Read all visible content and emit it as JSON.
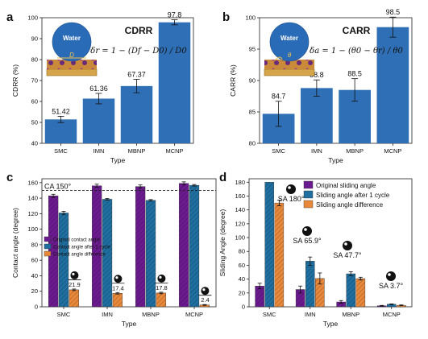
{
  "chart_data": [
    {
      "panel": "a",
      "type": "bar",
      "title": "CDRR",
      "equation": "δr = 1 − (Df − D0) / D0",
      "inset_label": "Water",
      "inset_symbol": "D",
      "categories": [
        "SMC",
        "IMN",
        "MBNP",
        "MCNP"
      ],
      "values": [
        51.42,
        61.36,
        67.37,
        97.8
      ],
      "value_labels": [
        "51.42",
        "61.36",
        "67.37",
        "97.8"
      ],
      "errors": [
        1.5,
        2.5,
        3.2,
        1.2
      ],
      "xlabel": "Type",
      "ylabel": "CDRR (%)",
      "ylim": [
        40,
        100
      ],
      "yticks": [
        40,
        50,
        60,
        70,
        80,
        90,
        100
      ],
      "color": "#2f6fb5"
    },
    {
      "panel": "b",
      "type": "bar",
      "title": "CARR",
      "equation": "δa = 1 − (θ0 − θr) / θ0",
      "inset_label": "Water",
      "inset_symbol": "θ",
      "categories": [
        "SMC",
        "IMN",
        "MBNP",
        "MCNP"
      ],
      "values": [
        84.7,
        88.8,
        88.5,
        98.5
      ],
      "value_labels": [
        "84.7",
        "88.8",
        "88.5",
        "98.5"
      ],
      "errors": [
        2.0,
        1.3,
        1.8,
        1.6
      ],
      "xlabel": "Type",
      "ylabel": "CARR (%)",
      "ylim": [
        80,
        100
      ],
      "yticks": [
        80,
        85,
        90,
        95,
        100
      ],
      "color": "#2f6fb5"
    },
    {
      "panel": "c",
      "type": "bar",
      "categories": [
        "SMC",
        "IMN",
        "MBNP",
        "MCNP"
      ],
      "series": [
        {
          "name": "Original contact angle",
          "values": [
            143,
            156,
            155,
            159
          ],
          "errors": [
            2,
            2,
            2,
            2
          ],
          "color": "#6b1b8f"
        },
        {
          "name": "Contact angle after 1 cycle",
          "values": [
            121,
            138.6,
            137.2,
            156.6
          ],
          "errors": [
            2,
            1,
            1,
            1
          ],
          "color": "#1f6fa0"
        },
        {
          "name": "Contact angle difference",
          "values": [
            21.9,
            17.4,
            17.8,
            2.4
          ],
          "errors": [
            1,
            1,
            1,
            0.5
          ],
          "color": "#e8883a"
        }
      ],
      "value_labels": [
        "21.9",
        "17.4",
        "17.8",
        "2.4"
      ],
      "reference_line": {
        "value": 150,
        "label": "CA 150°"
      },
      "xlabel": "Type",
      "ylabel": "Contact angle (degree)",
      "ylim": [
        0,
        165
      ],
      "yticks": [
        0,
        20,
        40,
        60,
        80,
        100,
        120,
        140,
        160
      ]
    },
    {
      "panel": "d",
      "type": "bar",
      "categories": [
        "SMC",
        "IMN",
        "MBNP",
        "MCNP"
      ],
      "series": [
        {
          "name": "Original sliding angle",
          "values": [
            30,
            25,
            7,
            1.5
          ],
          "errors": [
            4,
            5,
            2,
            0.5
          ],
          "color": "#6b1b8f"
        },
        {
          "name": "Sliding angle after 1 cycle",
          "values": [
            180,
            65.9,
            47.7,
            3.7
          ],
          "errors": [
            0,
            6,
            3,
            0.5
          ],
          "color": "#1f6fa0"
        },
        {
          "name": "Sliding angle difference",
          "values": [
            150,
            40.9,
            40.7,
            2.2
          ],
          "errors": [
            4,
            8,
            2,
            0.5
          ],
          "color": "#e8883a"
        }
      ],
      "value_labels": [
        "SA 180°",
        "SA 65.9°",
        "SA 47.7°",
        "SA 3.7°"
      ],
      "xlabel": "Type",
      "ylabel": "Sliding Angle (degree)",
      "ylim": [
        0,
        185
      ],
      "yticks": [
        0,
        20,
        40,
        60,
        80,
        100,
        120,
        140,
        160,
        180
      ]
    }
  ]
}
